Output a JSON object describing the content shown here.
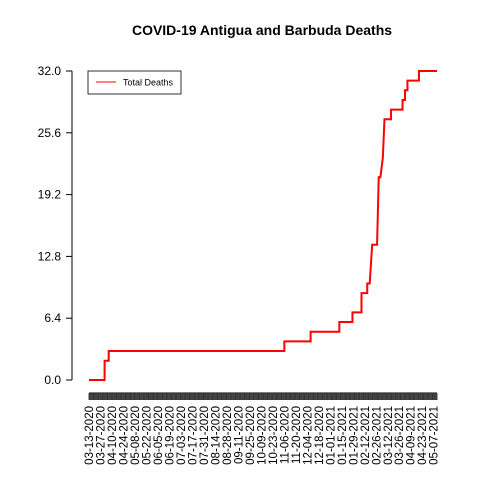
{
  "chart_data": {
    "type": "line",
    "title": "COVID-19 Antigua and Barbuda Deaths",
    "xlabel": "",
    "ylabel": "",
    "x_start": "03-13-2020",
    "x_end": "05-11-2021",
    "ylim": [
      0,
      32
    ],
    "yticks": [
      "0.0",
      "6.4",
      "12.8",
      "19.2",
      "25.6",
      "32.0"
    ],
    "xticks": [
      "03-13-2020",
      "03-27-2020",
      "04-10-2020",
      "04-24-2020",
      "05-08-2020",
      "05-22-2020",
      "06-05-2020",
      "06-19-2020",
      "07-03-2020",
      "07-17-2020",
      "07-31-2020",
      "08-14-2020",
      "08-28-2020",
      "09-11-2020",
      "09-25-2020",
      "10-09-2020",
      "10-23-2020",
      "11-06-2020",
      "11-20-2020",
      "12-04-2020",
      "12-18-2020",
      "01-01-2021",
      "01-15-2021",
      "01-29-2021",
      "02-12-2021",
      "02-26-2021",
      "03-12-2021",
      "03-26-2021",
      "04-09-2021",
      "04-23-2021",
      "05-07-2021"
    ],
    "grid": false,
    "legend_position": "top-left",
    "series": [
      {
        "name": "Total Deaths",
        "color": "#ff0000",
        "points": [
          [
            "03-13-2020",
            0
          ],
          [
            "04-01-2020",
            0
          ],
          [
            "04-01-2020",
            2
          ],
          [
            "04-06-2020",
            2
          ],
          [
            "04-06-2020",
            3
          ],
          [
            "11-06-2020",
            3
          ],
          [
            "11-06-2020",
            4
          ],
          [
            "12-08-2020",
            4
          ],
          [
            "12-08-2020",
            5
          ],
          [
            "01-12-2021",
            5
          ],
          [
            "01-12-2021",
            6
          ],
          [
            "01-28-2021",
            6
          ],
          [
            "01-28-2021",
            7
          ],
          [
            "02-08-2021",
            7
          ],
          [
            "02-08-2021",
            9
          ],
          [
            "02-15-2021",
            9
          ],
          [
            "02-15-2021",
            10
          ],
          [
            "02-18-2021",
            10
          ],
          [
            "02-21-2021",
            14
          ],
          [
            "02-27-2021",
            14
          ],
          [
            "03-01-2021",
            21
          ],
          [
            "03-03-2021",
            21
          ],
          [
            "03-06-2021",
            23
          ],
          [
            "03-08-2021",
            27
          ],
          [
            "03-16-2021",
            27
          ],
          [
            "03-16-2021",
            28
          ],
          [
            "03-30-2021",
            28
          ],
          [
            "03-30-2021",
            29
          ],
          [
            "04-02-2021",
            29
          ],
          [
            "04-02-2021",
            30
          ],
          [
            "04-05-2021",
            30
          ],
          [
            "04-05-2021",
            31
          ],
          [
            "04-19-2021",
            31
          ],
          [
            "04-19-2021",
            32
          ],
          [
            "05-11-2021",
            32
          ]
        ]
      }
    ]
  }
}
